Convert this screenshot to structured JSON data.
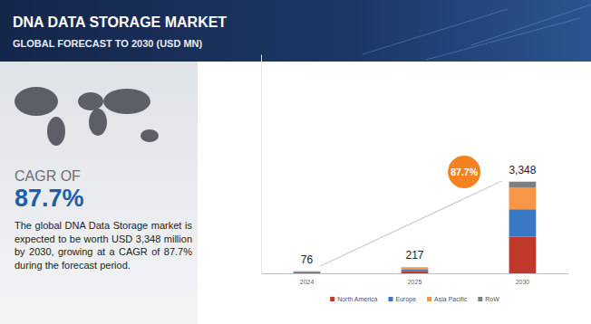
{
  "chart_data": {
    "type": "bar",
    "stacked": true,
    "title": "DNA DATA STORAGE MARKET",
    "subtitle": "GLOBAL FORECAST TO 2030 (USD MN)",
    "categories": [
      "2024",
      "2025",
      "2030"
    ],
    "series": [
      {
        "name": "North America",
        "color": "#c0392b",
        "values": [
          32,
          88,
          1340
        ]
      },
      {
        "name": "Europe",
        "color": "#3a78c3",
        "values": [
          22,
          63,
          1000
        ]
      },
      {
        "name": "Asia Pacific",
        "color": "#f79646",
        "values": [
          17,
          51,
          800
        ]
      },
      {
        "name": "RoW",
        "color": "#7f7f7f",
        "values": [
          5,
          15,
          208
        ]
      }
    ],
    "totals": [
      76,
      217,
      3348
    ],
    "total_labels": [
      "76",
      "217",
      "3,348"
    ],
    "ylim": [
      0,
      8000
    ],
    "tick_labels": "x",
    "legend": "bottom",
    "cagr_label": "CAGR OF",
    "cagr_value": "87.7%",
    "description": "The global DNA Data Storage market is expected to be worth USD 3,348 million by 2030, growing at a CAGR of 87.7% during the forecast period.",
    "annotation": "87.7%"
  }
}
